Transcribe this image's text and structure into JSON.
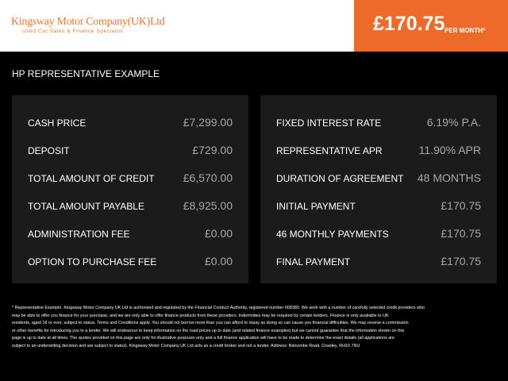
{
  "header": {
    "logo": "Kingsway Motor Company(UK)Ltd",
    "tagline": "Used Car Sales & Finance Specialist",
    "price": "£170.75",
    "price_suffix": "PER MONTH*"
  },
  "section_title": "HP REPRESENTATIVE EXAMPLE",
  "left_table": {
    "rows": [
      {
        "label": "CASH PRICE",
        "value": "£7,299.00"
      },
      {
        "label": "DEPOSIT",
        "value": "£729.00"
      },
      {
        "label": "TOTAL AMOUNT OF CREDIT",
        "value": "£6,570.00"
      },
      {
        "label": "TOTAL AMOUNT PAYABLE",
        "value": "£8,925.00"
      },
      {
        "label": "ADMINISTRATION FEE",
        "value": "£0.00"
      },
      {
        "label": "OPTION TO PURCHASE FEE",
        "value": "£0.00"
      }
    ]
  },
  "right_table": {
    "rows": [
      {
        "label": "FIXED INTEREST RATE",
        "value": "6.19% P.A."
      },
      {
        "label": "REPRESENTATIVE APR",
        "value": "11.90% APR"
      },
      {
        "label": "DURATION OF AGREEMENT",
        "value": "48 MONTHS"
      },
      {
        "label": "INITIAL PAYMENT",
        "value": "£170.75"
      },
      {
        "label": "46 MONTHLY PAYMENTS",
        "value": "£170.75"
      },
      {
        "label": "FINAL PAYMENT",
        "value": "£170.75"
      }
    ]
  },
  "disclaimer": {
    "lines": [
      "* Representative Example. Kingsway Motor Company UK Ltd is authorised and regulated by the Financial Conduct Authority, registered number 668380. We work with a number of carefully selected credit providers who",
      "may be able to offer you finance for your purchase, and we are only able to offer finance products from these providers. Indemnities may be required by certain lenders. Finance is only available to UK",
      "residents, aged 18 or over, subject to status. Terms and Conditions apply. You should not borrow more than you can afford to repay as doing so can cause you financial difficulties. We may receive a commission",
      "or other benefits for introducing you to a lender. We will endeavour to keep information on the road prices up to date (and related finance examples) but we cannot guarantee that the information shown on this",
      "page is up to date at all times. The quotes provided on this page are only for illustrative purposes only and a full finance application will have to be made to determine the exact details (all applications are",
      "subject to an underwriting decision and are subject to status). Kingsway Motor Company UK Ltd acts as a credit broker and not a lender. Address: Balcombe Road, Crawley, RH10 7RU"
    ]
  }
}
